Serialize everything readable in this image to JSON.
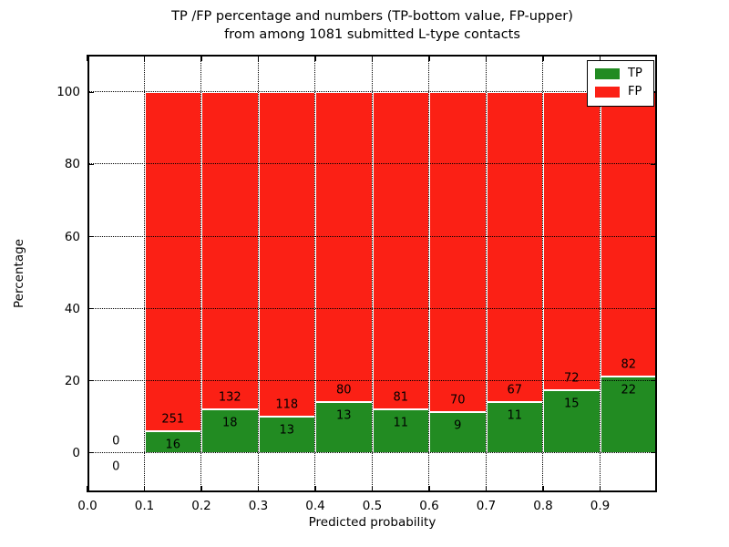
{
  "figure": {
    "title_line1": "TP /FP percentage and numbers (TP-bottom value, FP-upper)",
    "title_line2": "from among 1081 submitted L-type contacts"
  },
  "chart_data": {
    "type": "bar",
    "stacked": true,
    "title": "TP /FP percentage and numbers (TP-bottom value, FP-upper) from among 1081 submitted L-type contacts",
    "xlabel": "Predicted probability",
    "ylabel": "Percentage",
    "total_submitted": 1081,
    "xlim": [
      0.0,
      1.0
    ],
    "ylim": [
      -11,
      110.5
    ],
    "grid": "dotted",
    "xticks": [
      {
        "v": 0.0,
        "label": "0.0"
      },
      {
        "v": 0.1,
        "label": "0.1"
      },
      {
        "v": 0.2,
        "label": "0.2"
      },
      {
        "v": 0.3,
        "label": "0.3"
      },
      {
        "v": 0.4,
        "label": "0.4"
      },
      {
        "v": 0.5,
        "label": "0.5"
      },
      {
        "v": 0.6,
        "label": "0.6"
      },
      {
        "v": 0.7,
        "label": "0.7"
      },
      {
        "v": 0.8,
        "label": "0.8"
      },
      {
        "v": 0.9,
        "label": "0.9"
      }
    ],
    "yticks": [
      {
        "v": 0,
        "label": "0"
      },
      {
        "v": 20,
        "label": "20"
      },
      {
        "v": 40,
        "label": "40"
      },
      {
        "v": 60,
        "label": "60"
      },
      {
        "v": 80,
        "label": "80"
      },
      {
        "v": 100,
        "label": "100"
      }
    ],
    "bins": [
      {
        "range": [
          0.0,
          0.1
        ],
        "tp": 0,
        "fp": 0,
        "tp_pct": 0,
        "fp_pct": 0
      },
      {
        "range": [
          0.1,
          0.2
        ],
        "tp": 16,
        "fp": 251,
        "tp_pct": 5.99,
        "fp_pct": 94.01
      },
      {
        "range": [
          0.2,
          0.3
        ],
        "tp": 18,
        "fp": 132,
        "tp_pct": 12.0,
        "fp_pct": 88.0
      },
      {
        "range": [
          0.3,
          0.4
        ],
        "tp": 13,
        "fp": 118,
        "tp_pct": 9.92,
        "fp_pct": 90.08
      },
      {
        "range": [
          0.4,
          0.5
        ],
        "tp": 13,
        "fp": 80,
        "tp_pct": 13.98,
        "fp_pct": 86.02
      },
      {
        "range": [
          0.5,
          0.6
        ],
        "tp": 11,
        "fp": 81,
        "tp_pct": 11.96,
        "fp_pct": 88.04
      },
      {
        "range": [
          0.6,
          0.7
        ],
        "tp": 9,
        "fp": 70,
        "tp_pct": 11.39,
        "fp_pct": 88.61
      },
      {
        "range": [
          0.7,
          0.8
        ],
        "tp": 11,
        "fp": 67,
        "tp_pct": 14.1,
        "fp_pct": 85.9
      },
      {
        "range": [
          0.8,
          0.9
        ],
        "tp": 15,
        "fp": 72,
        "tp_pct": 17.24,
        "fp_pct": 82.76
      },
      {
        "range": [
          0.9,
          1.0
        ],
        "tp": 22,
        "fp": 82,
        "tp_pct": 21.15,
        "fp_pct": 78.85
      }
    ],
    "legend": {
      "position": "upper right",
      "entries": [
        {
          "label": "TP",
          "color": "#228b22"
        },
        {
          "label": "FP",
          "color": "#fb2015"
        }
      ]
    },
    "colors": {
      "tp": "#228b22",
      "fp": "#fb2015",
      "bar_edge": "#ffffff",
      "grid": "#000000",
      "axes": "#000000",
      "background": "#ffffff"
    }
  }
}
